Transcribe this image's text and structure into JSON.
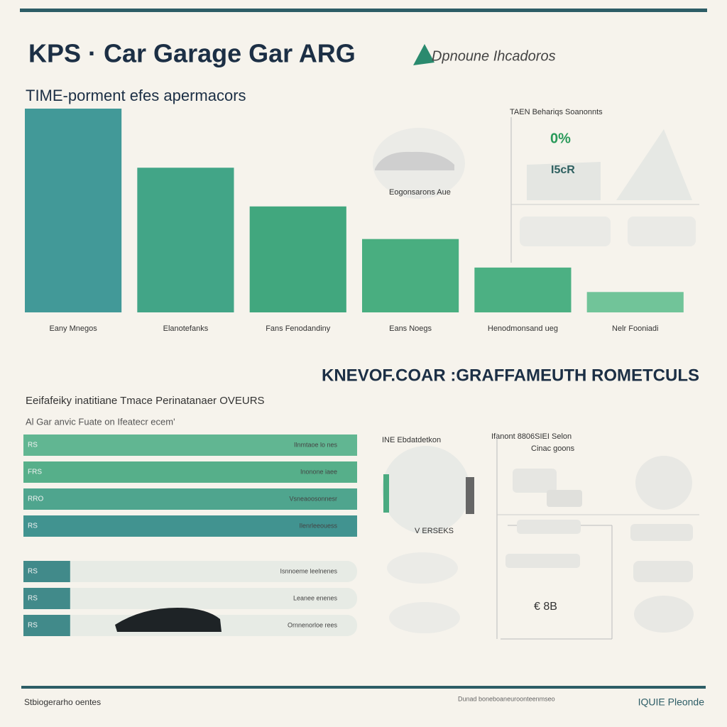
{
  "header": {
    "title": "KPS · Car Garage Gar ARG",
    "logo_text": "Dpnoune Ihcadoros"
  },
  "chart_data": [
    {
      "type": "bar",
      "title": "TIME-porment efes apermacors",
      "categories": [
        "Eany Mnegos",
        "Elanotefanks",
        "Fans Fenodandiny",
        "Eans Noegs",
        "Henodmonsand ueg",
        "Nelr Fooniadi"
      ],
      "values": [
        100,
        71,
        52,
        36,
        22,
        10
      ],
      "colors": [
        "#2f8f8f",
        "#2f9c7c",
        "#2e9e72",
        "#36a674",
        "#3aa878",
        "#63bf90"
      ]
    },
    {
      "type": "hbar",
      "title": "Eeifafeiky inatitiane Tmace Perinatanaer OVEURS",
      "subtitle": "Al Gar anvic Fuate on Ifeatecr ecem'",
      "categories": [
        "RS",
        "FRS",
        "RRO",
        "RS",
        "RS",
        "RS",
        "RS"
      ],
      "values": [
        100,
        100,
        100,
        100,
        14,
        14,
        14
      ],
      "annotations": [
        "Ilnmtaoe lo nes",
        "Inonone iaee",
        "Vsneaoosonnesr",
        "Ilenrleeouess",
        "Isnnoeme leelnenes",
        "Leanee enenes",
        "Ornnenorloe rees"
      ],
      "colors": [
        "#52b088",
        "#46a880",
        "#3e9d84",
        "#2f8a86",
        "#2f7f80",
        "#2f7f80",
        "#2f7f80"
      ]
    }
  ],
  "section2": {
    "title": "KNEVOF.COAR :GRAFFAMEUTH  ROMETCULS"
  },
  "panels": {
    "top_right_title": "TAEN Behariqs Soanonnts",
    "top_right_pct": "0%",
    "top_right_value": "I5cR",
    "car_caption": "Eogonsarons Aue",
    "mid_title": "INE Ebdatdetkon",
    "mid_caption": "V ERSEKS",
    "right_title": "Ifanont 8806SIEI Selon",
    "right_sub": "Cinac goons",
    "right_value": "€ 8B"
  },
  "footer": {
    "left": "Stbiogerarho oentes",
    "center": "Dunad boneboaneuroonteenmseo",
    "right": "IQUIE Pleonde"
  }
}
